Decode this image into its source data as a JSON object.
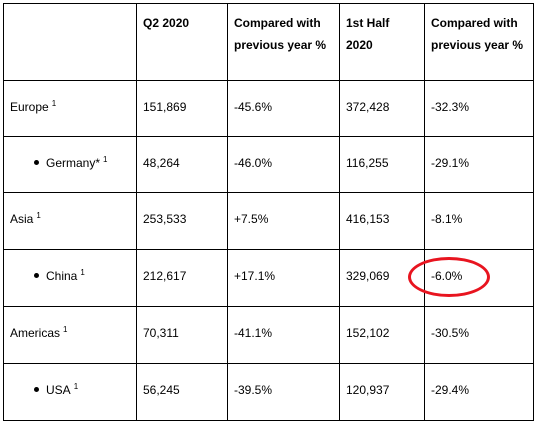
{
  "table": {
    "columns": [
      "",
      "Q2 2020",
      "Compared with previous year %",
      "1st Half 2020",
      "Compared with previous year %"
    ],
    "rows": [
      {
        "label": "Europe",
        "footnote": "1",
        "sub": false,
        "q2": "151,869",
        "q2_change": "-45.6%",
        "h1": "372,428",
        "h1_change": "-32.3%"
      },
      {
        "label": "Germany*",
        "footnote": "1",
        "sub": true,
        "q2": "48,264",
        "q2_change": "-46.0%",
        "h1": "116,255",
        "h1_change": "-29.1%"
      },
      {
        "label": "Asia",
        "footnote": "1",
        "sub": false,
        "q2": "253,533",
        "q2_change": "+7.5%",
        "h1": "416,153",
        "h1_change": "-8.1%"
      },
      {
        "label": "China",
        "footnote": "1",
        "sub": true,
        "q2": "212,617",
        "q2_change": "+17.1%",
        "h1": "329,069",
        "h1_change": "-6.0%"
      },
      {
        "label": "Americas",
        "footnote": "1",
        "sub": false,
        "q2": "70,311",
        "q2_change": "-41.1%",
        "h1": "152,102",
        "h1_change": "-30.5%"
      },
      {
        "label": "USA",
        "footnote": "1",
        "sub": true,
        "q2": "56,245",
        "q2_change": "-39.5%",
        "h1": "120,937",
        "h1_change": "-29.4%"
      }
    ]
  },
  "annotation": {
    "color": "#e8141f",
    "shape": "ellipse"
  }
}
